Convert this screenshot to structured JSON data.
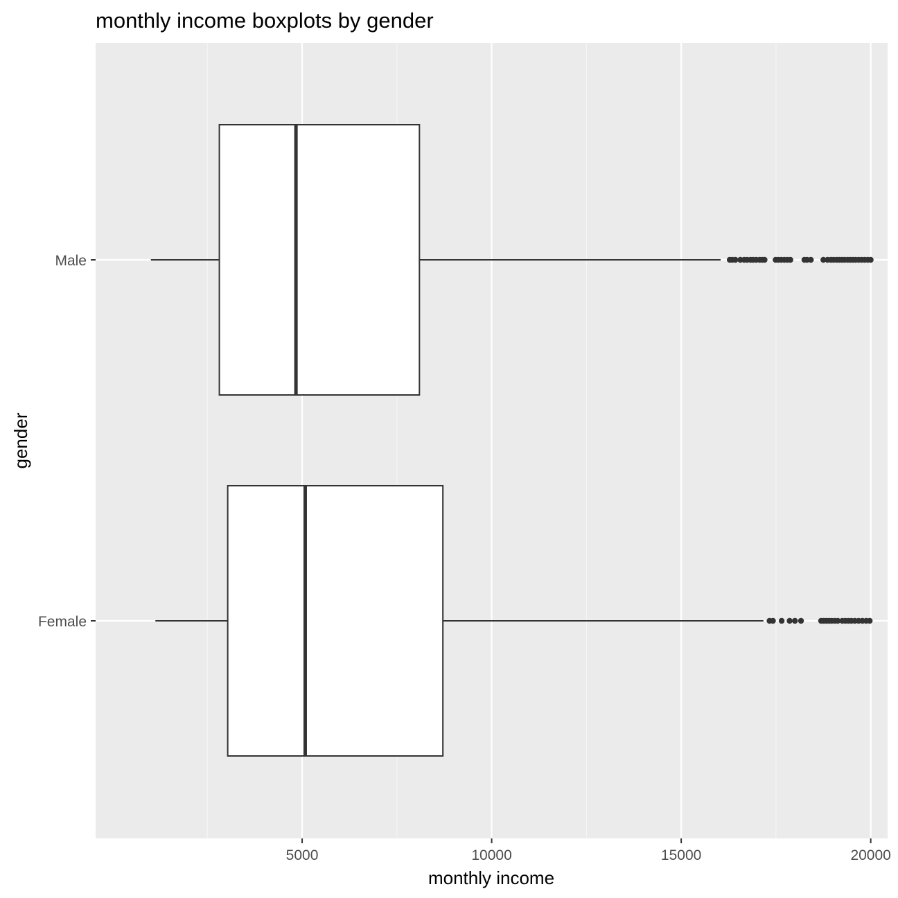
{
  "chart_data": {
    "type": "boxplot",
    "orientation": "horizontal",
    "title": "monthly income boxplots by gender",
    "xlabel": "monthly income",
    "ylabel": "gender",
    "xlim": [
      -448,
      20445
    ],
    "x_ticks": [
      5000,
      10000,
      15000,
      20000
    ],
    "x_tick_labels": [
      "5000",
      "10000",
      "15000",
      "20000"
    ],
    "x_minor_ticks": [
      2500,
      7500,
      12500,
      17500
    ],
    "categories": [
      "Male",
      "Female"
    ],
    "grid": true,
    "legend": "none",
    "colors": {
      "panel_background": "#ebebeb",
      "grid_major": "#ffffff",
      "grid_minor": "#f5f5f5",
      "box_fill": "#ffffff",
      "box_stroke": "#333333",
      "axis_text": "#4d4d4d"
    },
    "series": [
      {
        "category": "Male",
        "whisker_low": 1009,
        "q1": 2816,
        "median": 4837,
        "q3": 8094,
        "whisker_high": 16040,
        "outliers": [
          16280,
          16350,
          16430,
          16560,
          16660,
          16740,
          16830,
          16900,
          16980,
          17070,
          17140,
          17200,
          17490,
          17560,
          17640,
          17720,
          17800,
          17880,
          18250,
          18320,
          18420,
          18750,
          18860,
          18950,
          19020,
          19100,
          19170,
          19240,
          19310,
          19390,
          19460,
          19530,
          19600,
          19680,
          19760,
          19840,
          19920,
          19999
        ]
      },
      {
        "category": "Female",
        "whisker_low": 1129,
        "q1": 3037,
        "median": 5081,
        "q3": 8713,
        "whisker_high": 17169,
        "outliers": [
          17330,
          17420,
          17650,
          17860,
          18000,
          18160,
          18690,
          18760,
          18830,
          18900,
          18970,
          19050,
          19130,
          19250,
          19330,
          19410,
          19490,
          19580,
          19680,
          19780,
          19880,
          19973
        ]
      }
    ]
  }
}
